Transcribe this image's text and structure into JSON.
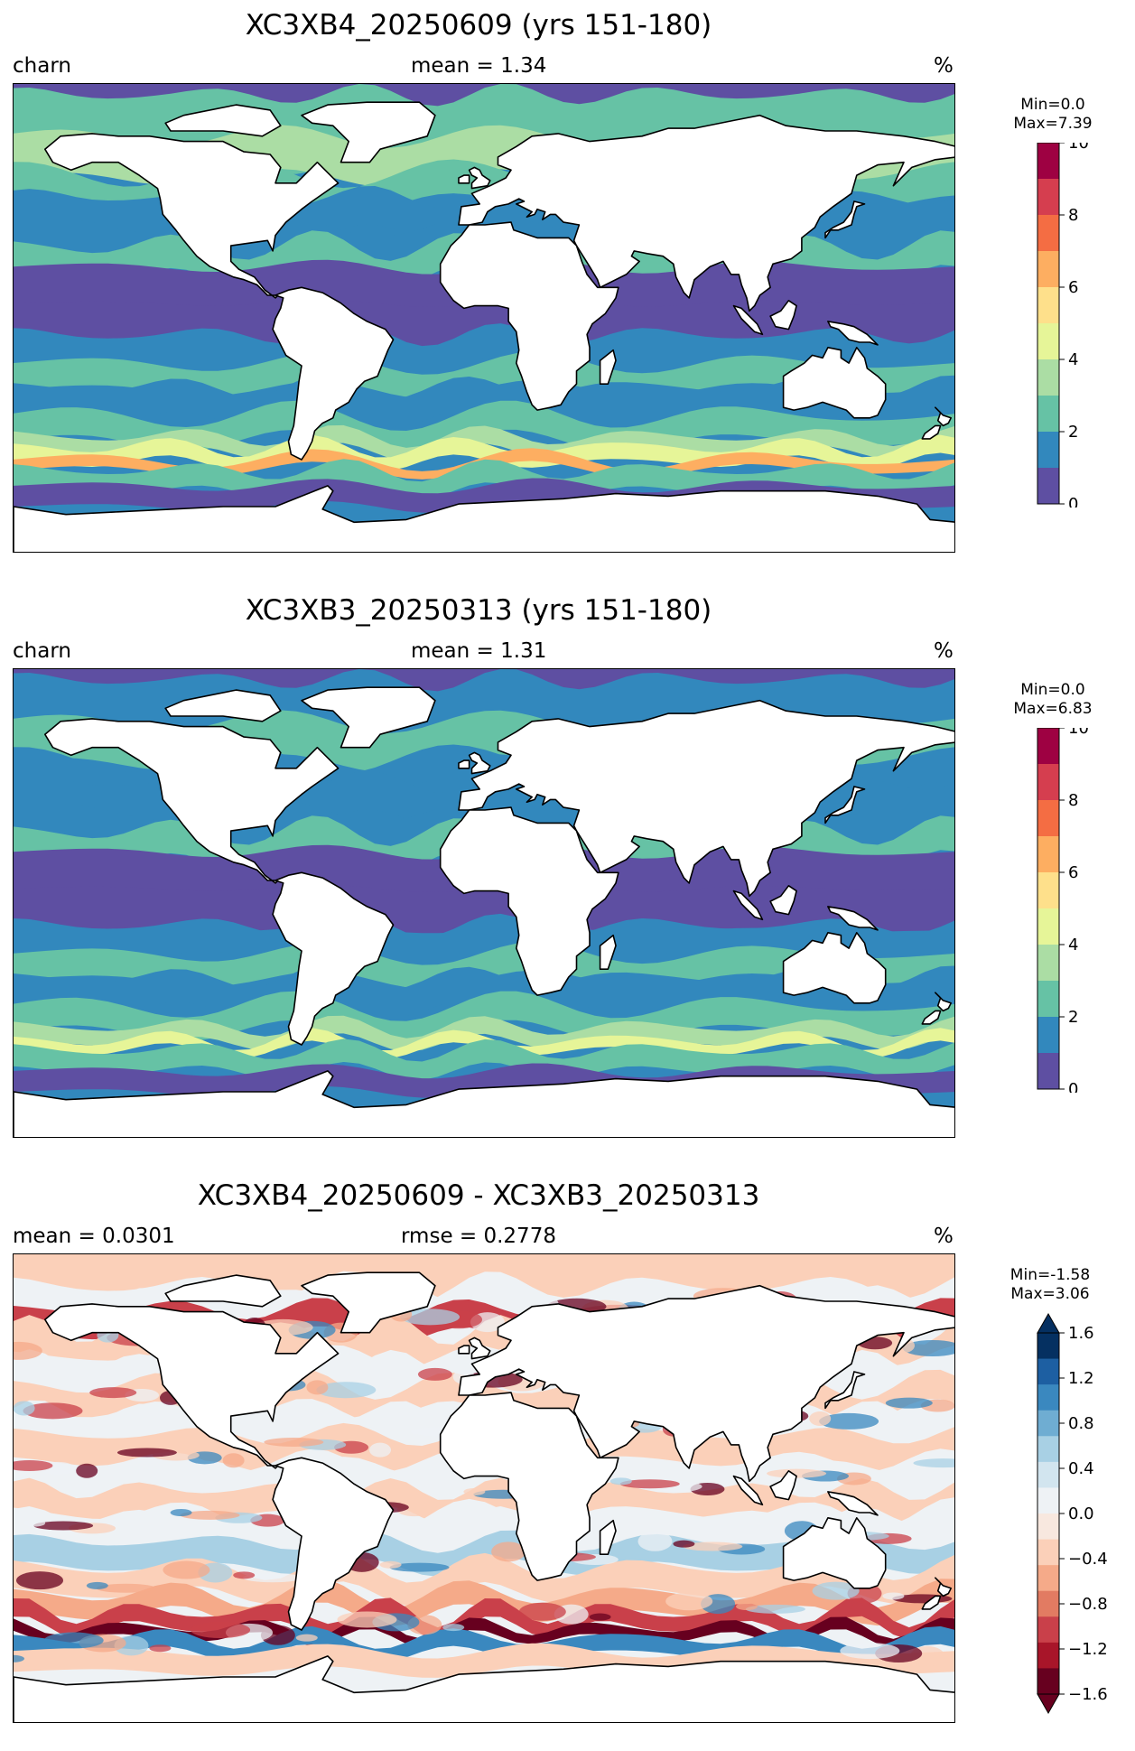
{
  "panels": [
    {
      "title": "XC3XB4_20250609 (yrs 151-180)",
      "left_label": "charn",
      "center_label": "mean = 1.34",
      "right_label": "%",
      "min_text": "Min=0.0",
      "max_text": "Max=7.39",
      "colorbar": {
        "ticks": [
          "0",
          "2",
          "4",
          "6",
          "8",
          "10"
        ],
        "colors": [
          "#5e4fa2",
          "#3288bd",
          "#66c2a5",
          "#abdda4",
          "#e6f598",
          "#fee08b",
          "#fdae61",
          "#f46d43",
          "#d53e4f",
          "#9e0142"
        ],
        "extend": "neither"
      }
    },
    {
      "title": "XC3XB3_20250313 (yrs 151-180)",
      "left_label": "charn",
      "center_label": "mean = 1.31",
      "right_label": "%",
      "min_text": "Min=0.0",
      "max_text": "Max=6.83",
      "colorbar": {
        "ticks": [
          "0",
          "2",
          "4",
          "6",
          "8",
          "10"
        ],
        "colors": [
          "#5e4fa2",
          "#3288bd",
          "#66c2a5",
          "#abdda4",
          "#e6f598",
          "#fee08b",
          "#fdae61",
          "#f46d43",
          "#d53e4f",
          "#9e0142"
        ],
        "extend": "neither"
      }
    },
    {
      "title": "XC3XB4_20250609 - XC3XB3_20250313",
      "left_label": "mean = 0.0301",
      "center_label": "rmse = 0.2778",
      "right_label": "%",
      "min_text": "Min=-1.58",
      "max_text": "Max=3.06",
      "colorbar": {
        "ticks": [
          "1.6",
          "1.2",
          "0.8",
          "0.4",
          "0.0",
          "−0.4",
          "−0.8",
          "−1.2",
          "−1.6"
        ],
        "colors": [
          "#053061",
          "#1d5fa2",
          "#3a88bf",
          "#6fadd2",
          "#a8d0e4",
          "#d2e5ef",
          "#eef2f5",
          "#f8e8df",
          "#fbd0b9",
          "#f5aa89",
          "#e27b62",
          "#c9404a",
          "#a81529",
          "#67001f"
        ],
        "extend": "both"
      }
    }
  ],
  "map_colors": {
    "land": "#ffffff",
    "coast": "#000000",
    "field_panel1": [
      "#5e4fa2",
      "#3288bd",
      "#66c2a5",
      "#abdda4",
      "#e6f598",
      "#fdae61",
      "#f46d43"
    ],
    "field_panel3": [
      "#3a88bf",
      "#a8d0e4",
      "#eef2f5",
      "#fbd0b9",
      "#f5aa89",
      "#c9404a",
      "#67001f"
    ]
  }
}
